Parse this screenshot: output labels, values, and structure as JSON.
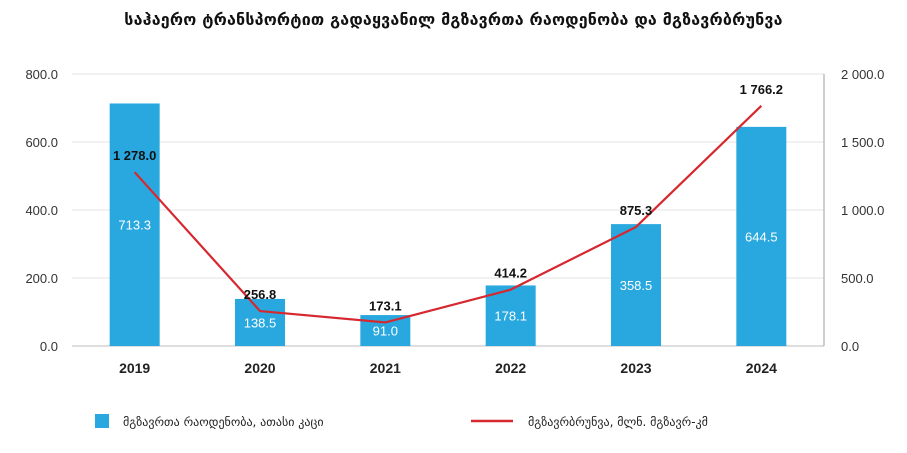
{
  "chart_data": {
    "type": "bar",
    "title": "საჰაერო ტრანსპორტით გადაყვანილ მგზავრთა რაოდენობა და მგზავრბრუნვა",
    "categories": [
      "2019",
      "2020",
      "2021",
      "2022",
      "2023",
      "2024"
    ],
    "series": [
      {
        "name": "მგზავრთა რაოდენობა, ათასი კაცი",
        "type": "bar",
        "axis": "left",
        "color": "#29a8e0",
        "values": [
          713.3,
          138.5,
          91.0,
          178.1,
          358.5,
          644.5
        ],
        "labels": [
          "713.3",
          "138.5",
          "91.0",
          "178.1",
          "358.5",
          "644.5"
        ]
      },
      {
        "name": "მგზავრბრუნვა, მლნ. მგზავრ-კმ",
        "type": "line",
        "axis": "right",
        "color": "#d6282f",
        "values": [
          1278.0,
          256.8,
          173.1,
          414.2,
          875.3,
          1766.2
        ],
        "labels": [
          "1 278.0",
          "256.8",
          "173.1",
          "414.2",
          "875.3",
          "1 766.2"
        ]
      }
    ],
    "y_left": {
      "ylim": [
        0,
        800
      ],
      "ticks": [
        "0.0",
        "200.0",
        "400.0",
        "600.0",
        "800.0"
      ]
    },
    "y_right": {
      "ylim": [
        0,
        2000
      ],
      "ticks": [
        "0.0",
        "500.0",
        "1 000.0",
        "1 500.0",
        "2 000.0"
      ]
    },
    "grid": true,
    "legend": "bottom"
  }
}
